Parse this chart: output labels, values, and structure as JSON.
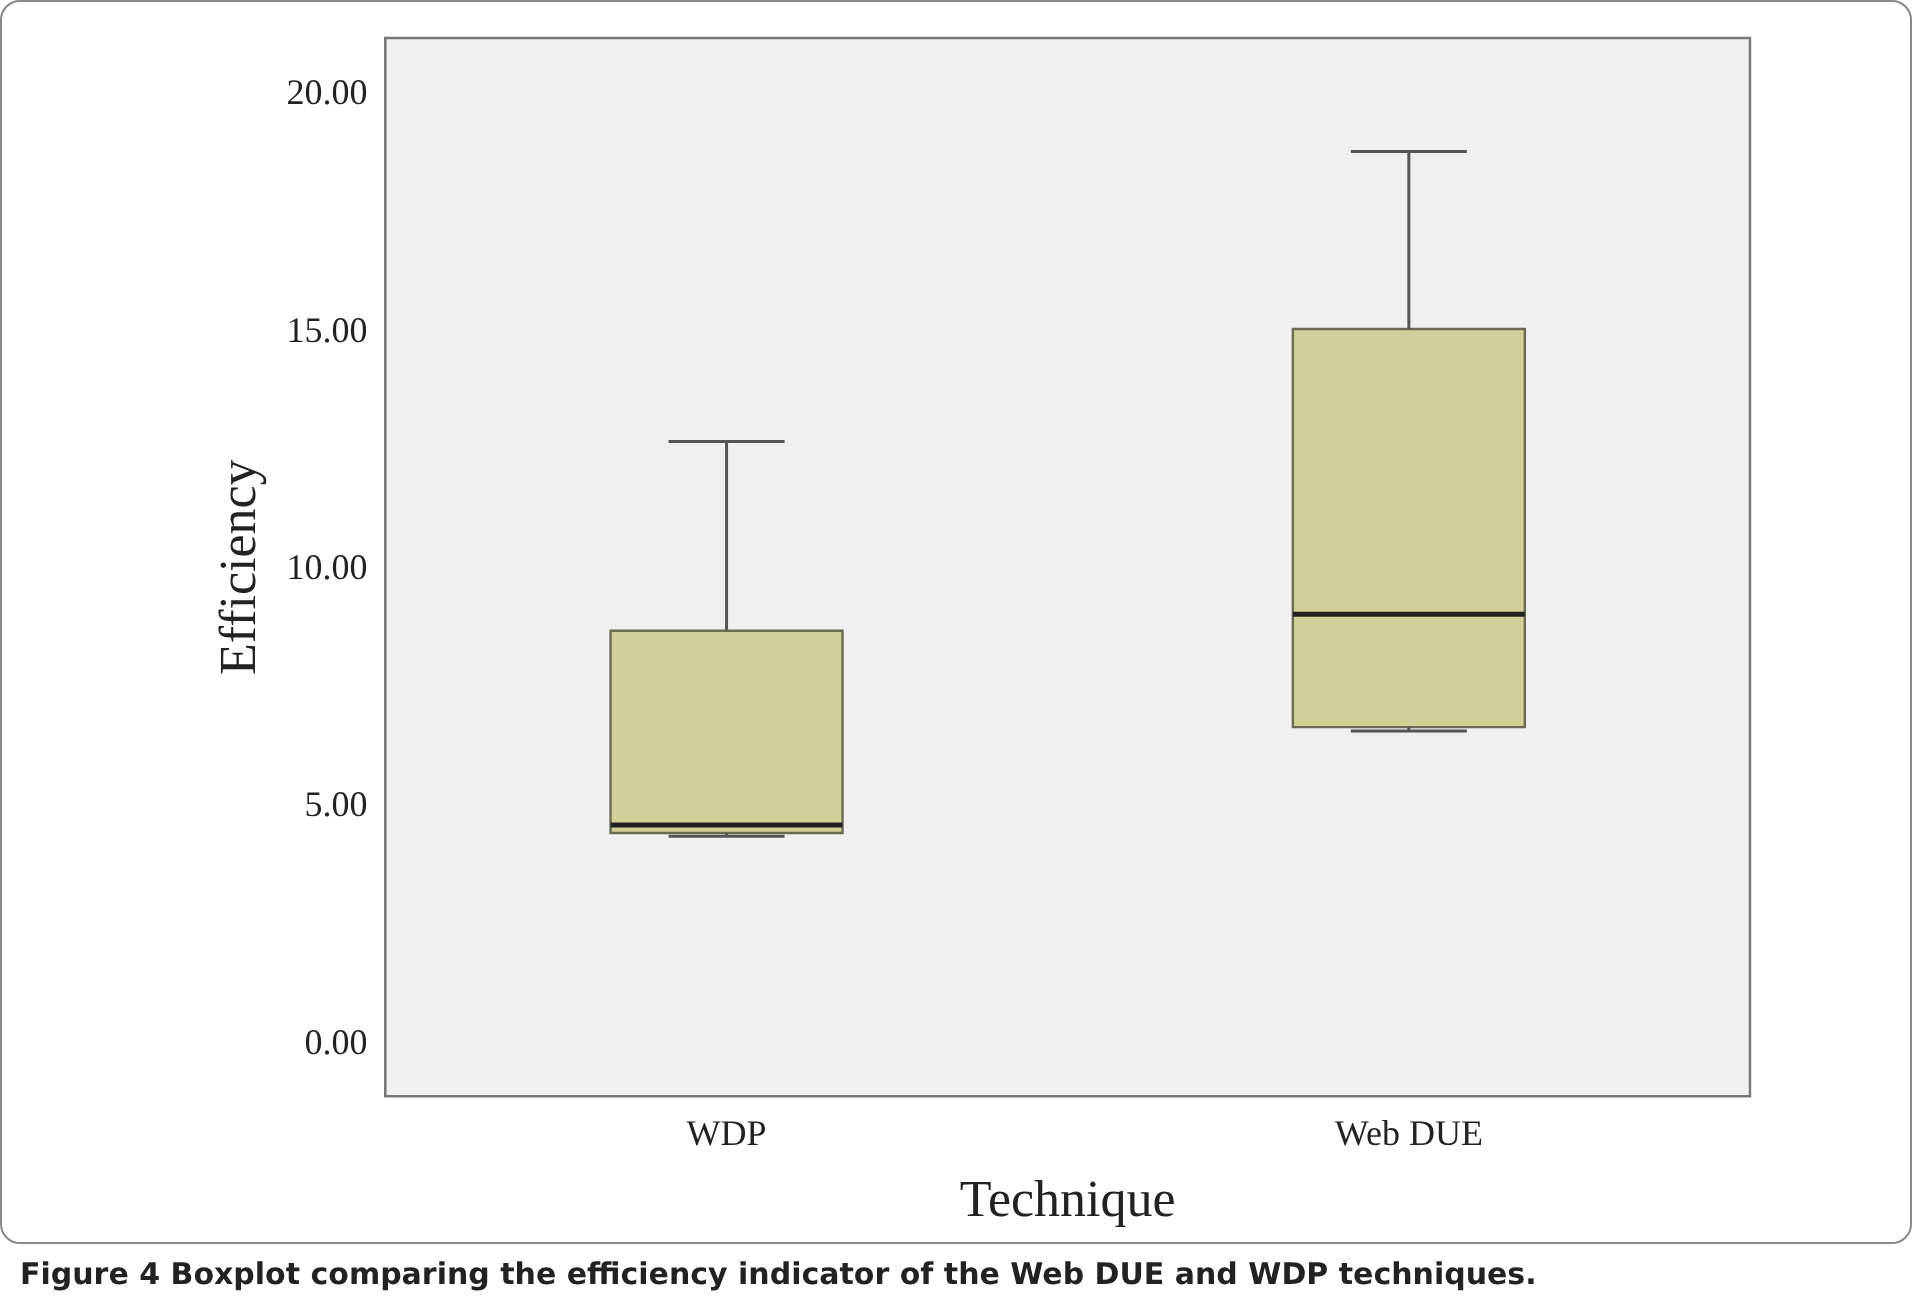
{
  "chart_data": {
    "type": "box",
    "xlabel": "Technique",
    "ylabel": "Efficiency",
    "categories": [
      "WDP",
      "Web DUE"
    ],
    "boxes": [
      {
        "low": 4.38,
        "q1": 4.45,
        "median": 4.62,
        "q3": 8.71,
        "high": 12.7
      },
      {
        "low": 6.6,
        "q1": 6.68,
        "median": 9.06,
        "q3": 15.07,
        "high": 18.81
      }
    ],
    "color": "#d3cf99",
    "ylim": [
      -1.1,
      21.2
    ],
    "yticks": [
      {
        "value": 0,
        "label": "0.00"
      },
      {
        "value": 5,
        "label": "5.00"
      },
      {
        "value": 10,
        "label": "10.00"
      },
      {
        "value": 15,
        "label": "15.00"
      },
      {
        "value": 20,
        "label": "20.00"
      }
    ],
    "grid": false,
    "legend": false,
    "annotations": [
      "Figure 4 Boxplot comparing the efficiency indicator of the Web DUE and WDP techniques."
    ]
  }
}
